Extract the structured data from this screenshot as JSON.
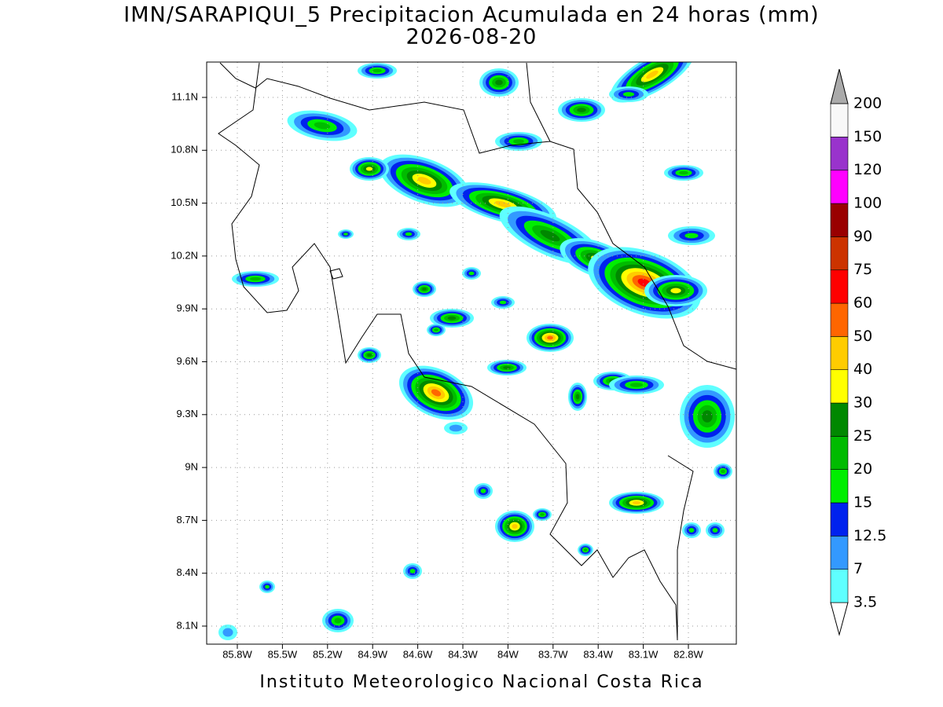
{
  "map": {
    "title": "IMN/SARAPIQUI_5 Precipitacion Acumulada en 24 horas (mm)",
    "subtitle": "2026-08-20",
    "footer": "Instituto Meteorologico Nacional Costa Rica",
    "lat_labels": [
      "11.1N",
      "10.8N",
      "10.5N",
      "10.2N",
      "9.9N",
      "9.6N",
      "9.3N",
      "9N",
      "8.7N",
      "8.4N",
      "8.1N"
    ],
    "lon_labels": [
      "85.8W",
      "85.5W",
      "85.2W",
      "84.9W",
      "84.6W",
      "84.3W",
      "84W",
      "83.7W",
      "83.4W",
      "83.1W",
      "82.8W"
    ],
    "colorbar": {
      "levels": [
        3.5,
        7,
        12.5,
        15,
        20,
        25,
        30,
        40,
        50,
        60,
        75,
        90,
        100,
        120,
        150,
        200
      ],
      "colors": [
        "#5fffff",
        "#3399ff",
        "#0022ee",
        "#00ee00",
        "#00bb00",
        "#008800",
        "#ffff00",
        "#ffcc00",
        "#ff6600",
        "#ff0000",
        "#cc3300",
        "#990000",
        "#ff00ff",
        "#9933cc",
        "#f8f8f8"
      ],
      "under_color": "#ffffff",
      "over_color": "#aaaaaa"
    }
  }
}
